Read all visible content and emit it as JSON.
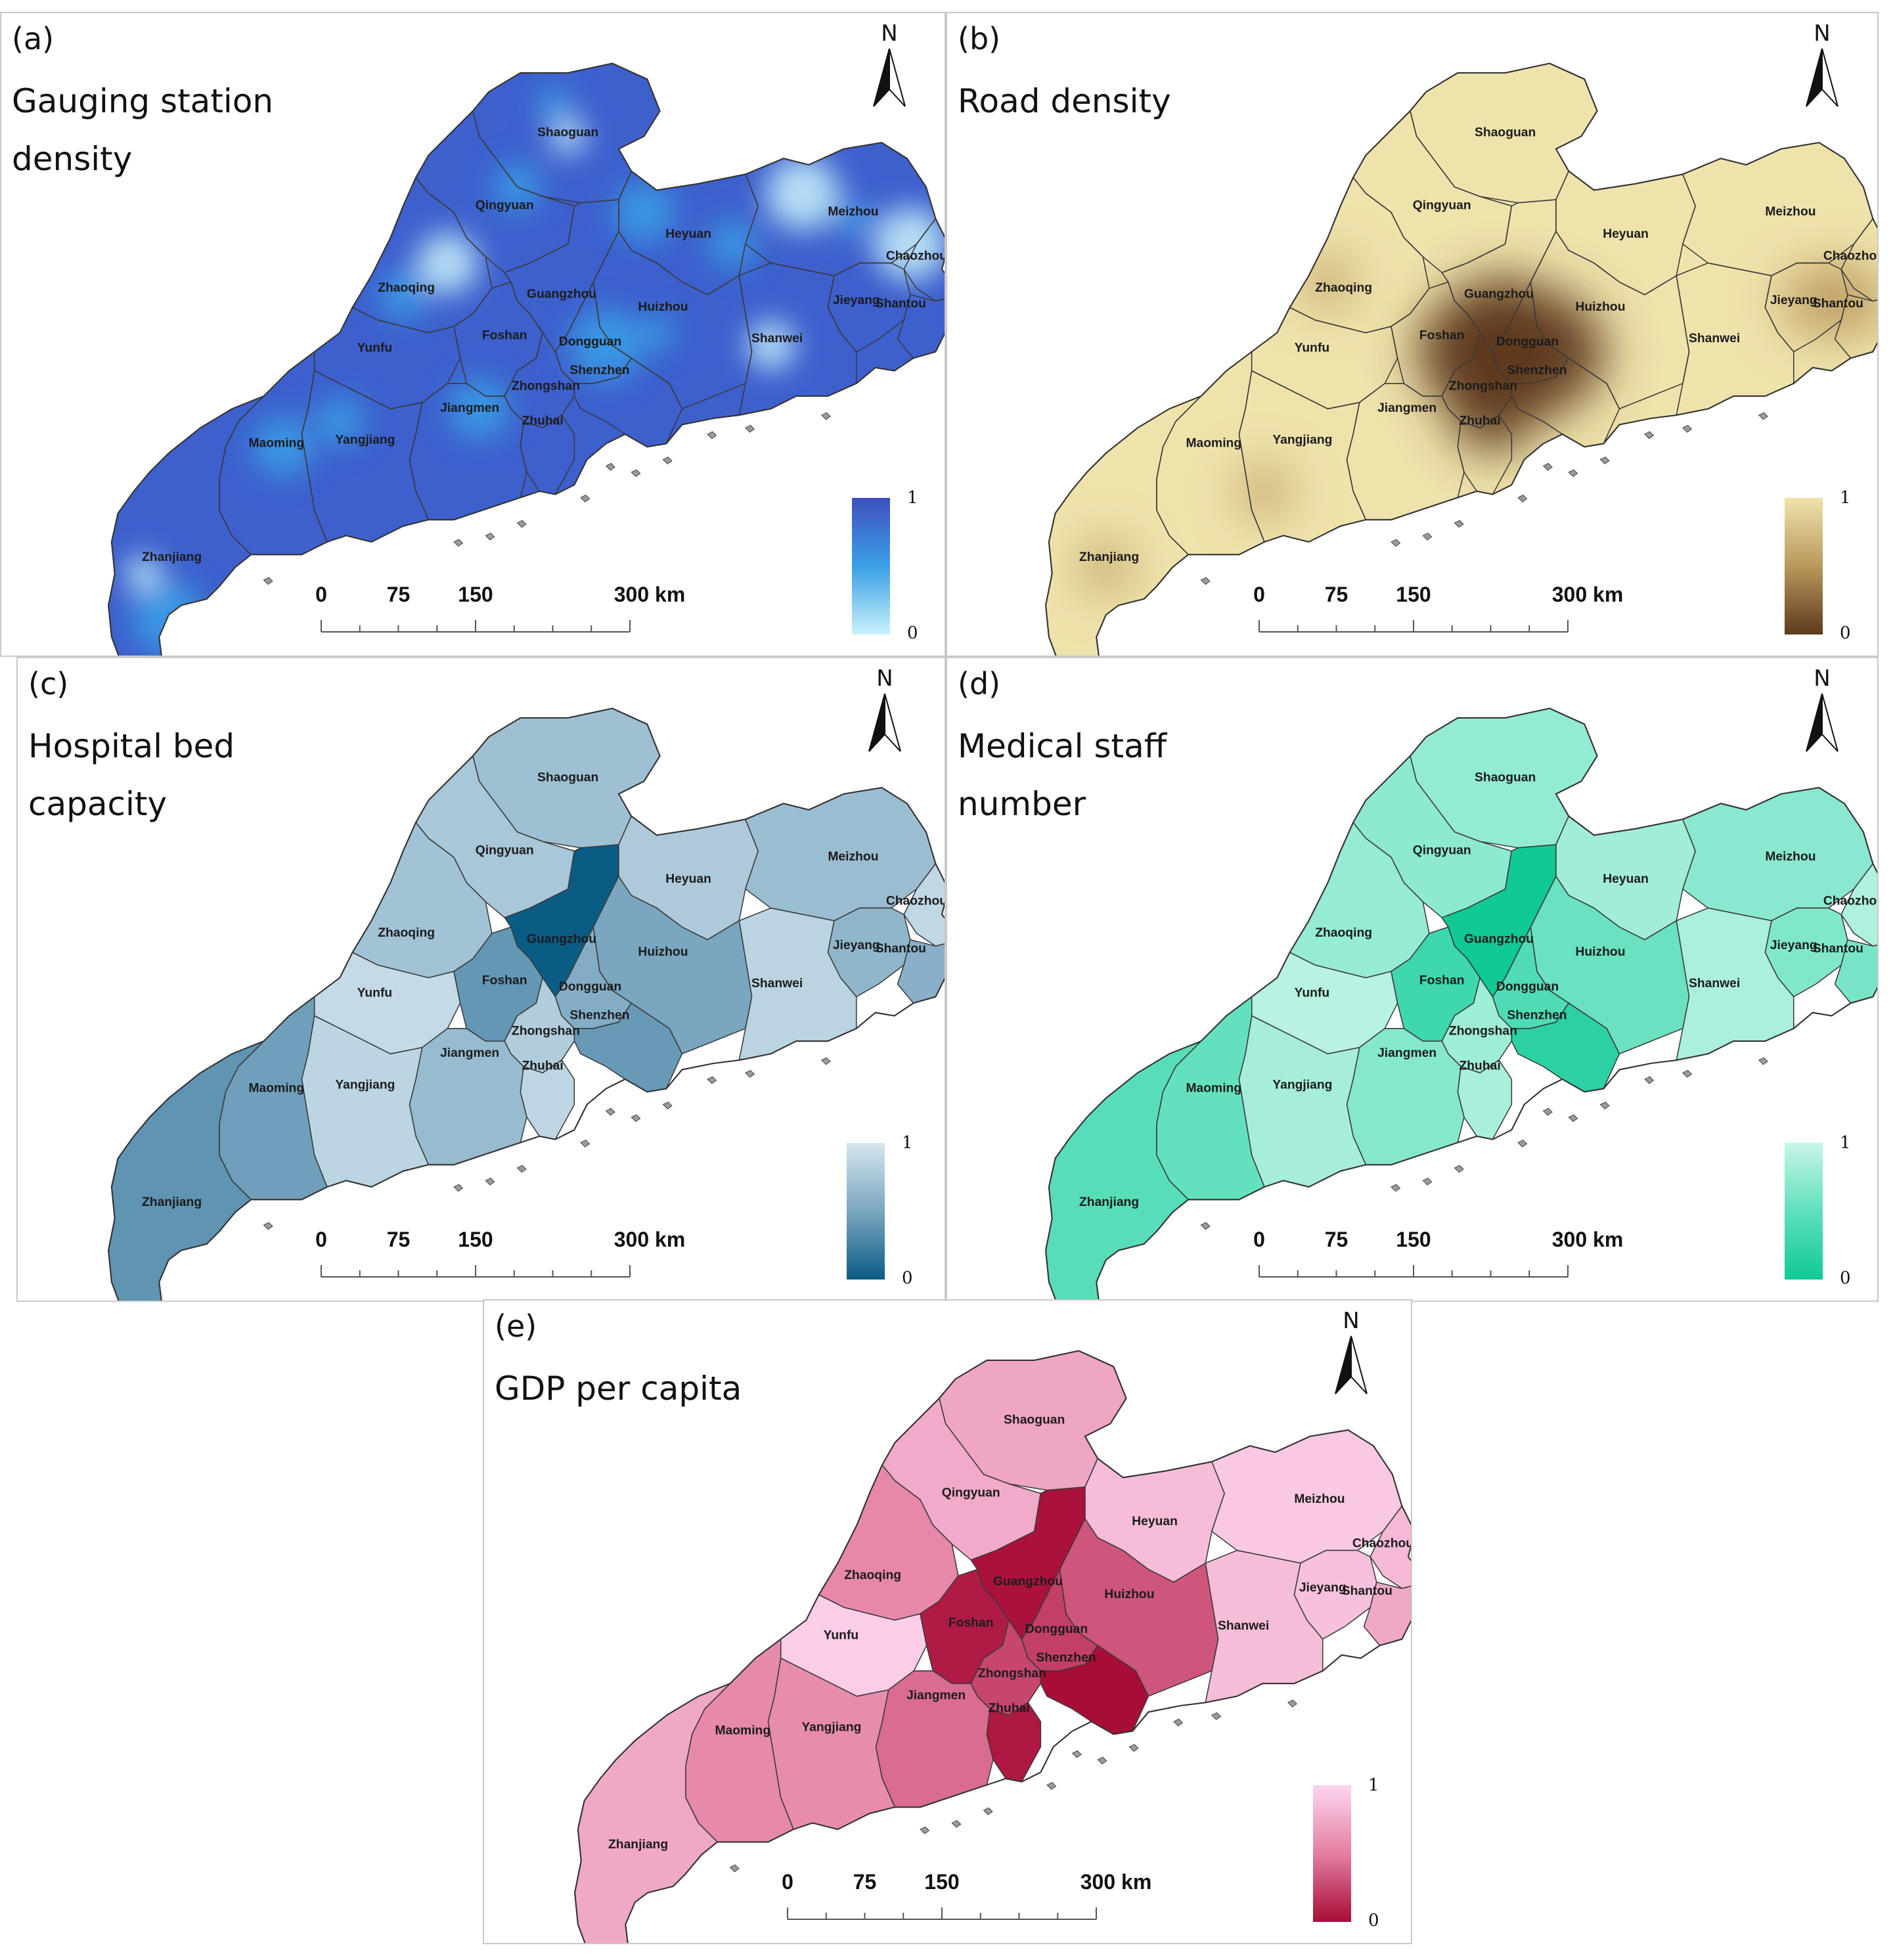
{
  "panels": [
    {
      "id": "a",
      "label": "(a)",
      "title": "Gauging station\ndensity",
      "ramp": {
        "high": "#3f4fbf",
        "mid": "#3aa0e6",
        "low": "#c9f2fb"
      },
      "legend_max": "1",
      "legend_min": "0"
    },
    {
      "id": "b",
      "label": "(b)",
      "title": "Road density",
      "ramp": {
        "high": "#efe3ac",
        "mid": "#b9985c",
        "low": "#5e3a1d"
      },
      "legend_max": "1",
      "legend_min": "0"
    },
    {
      "id": "c",
      "label": "(c)",
      "title": "Hospital bed\ncapacity",
      "ramp": {
        "high": "#d6e7ef",
        "mid": "#7aa6c0",
        "low": "#0a5c85"
      },
      "legend_max": "1",
      "legend_min": "0"
    },
    {
      "id": "d",
      "label": "(d)",
      "title": "Medical staff\nnumber",
      "ramp": {
        "high": "#c8f5e9",
        "mid": "#5fe0bd",
        "low": "#10c994"
      },
      "legend_max": "1",
      "legend_min": "0"
    },
    {
      "id": "e",
      "label": "(e)",
      "title": "GDP per capita",
      "ramp": {
        "high": "#fdd6ef",
        "mid": "#e47ea2",
        "low": "#a80d37"
      },
      "legend_max": "1",
      "legend_min": "0"
    }
  ],
  "cities": [
    "Shaoguan",
    "Qingyuan",
    "Meizhou",
    "Heyuan",
    "Chaozhou",
    "Zhaoqing",
    "Guangzhou",
    "Huizhou",
    "Jieyang",
    "Shantou",
    "Yunfu",
    "Foshan",
    "Dongguan",
    "Shanwei",
    "Shenzhen",
    "Zhongshan",
    "Jiangmen",
    "Zhuhai",
    "Maoming",
    "Yangjiang",
    "Zhanjiang"
  ],
  "region_values": {
    "c": {
      "Shaoguan": 0.7,
      "Qingyuan": 0.75,
      "Meizhou": 0.68,
      "Heyuan": 0.78,
      "Chaozhou": 0.88,
      "Zhaoqing": 0.72,
      "Guangzhou": 0.0,
      "Huizhou": 0.5,
      "Jieyang": 0.62,
      "Shantou": 0.58,
      "Yunfu": 0.9,
      "Foshan": 0.4,
      "Dongguan": 0.55,
      "Shanwei": 0.85,
      "Shenzhen": 0.42,
      "Zhongshan": 0.8,
      "Jiangmen": 0.66,
      "Zhuhai": 0.87,
      "Maoming": 0.45,
      "Yangjiang": 0.86,
      "Zhanjiang": 0.38
    },
    "d": {
      "Shaoguan": 0.75,
      "Qingyuan": 0.72,
      "Meizhou": 0.7,
      "Heyuan": 0.82,
      "Chaozhou": 0.88,
      "Zhaoqing": 0.76,
      "Guangzhou": 0.0,
      "Huizhou": 0.55,
      "Jieyang": 0.66,
      "Shantou": 0.62,
      "Yunfu": 0.92,
      "Foshan": 0.3,
      "Dongguan": 0.4,
      "Shanwei": 0.86,
      "Shenzhen": 0.18,
      "Zhongshan": 0.8,
      "Jiangmen": 0.68,
      "Zhuhai": 0.85,
      "Maoming": 0.52,
      "Yangjiang": 0.84,
      "Zhanjiang": 0.45
    },
    "e": {
      "Shaoguan": 0.72,
      "Qingyuan": 0.75,
      "Meizhou": 0.92,
      "Heyuan": 0.85,
      "Chaozhou": 0.83,
      "Zhaoqing": 0.55,
      "Guangzhou": 0.02,
      "Huizhou": 0.32,
      "Jieyang": 0.88,
      "Shantou": 0.74,
      "Yunfu": 0.95,
      "Foshan": 0.06,
      "Dongguan": 0.22,
      "Shanwei": 0.86,
      "Shenzhen": 0.0,
      "Zhongshan": 0.25,
      "Jiangmen": 0.42,
      "Zhuhai": 0.05,
      "Maoming": 0.56,
      "Yangjiang": 0.58,
      "Zhanjiang": 0.74
    }
  },
  "scalebar": {
    "t0": "0",
    "t75": "75",
    "t150": "150",
    "t300": "300 km"
  },
  "north": "N"
}
